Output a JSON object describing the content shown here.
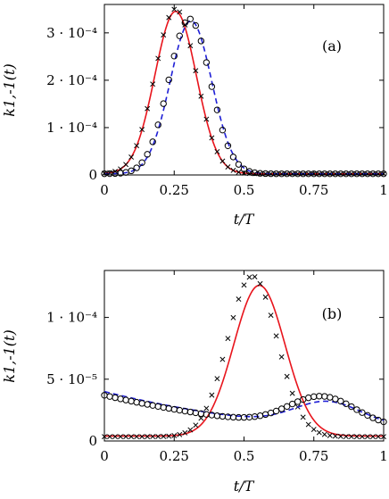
{
  "colors": {
    "red_line": "#e8141c",
    "blue_dashed": "#1f1fd6",
    "markers": "#000000"
  },
  "chart_data": [
    {
      "type": "line",
      "panel_label": "(a)",
      "xlabel": "t/T",
      "ylabel": "k1,-1(t)",
      "xlim": [
        0,
        1
      ],
      "ylim": [
        0,
        0.00036
      ],
      "xticks": [
        0,
        0.25,
        0.5,
        0.75,
        1
      ],
      "xtick_labels": [
        "0",
        "0.25",
        "0.5",
        "0.75",
        "1"
      ],
      "yticks": [
        0,
        0.0001,
        0.0002,
        0.0003
      ],
      "ytick_labels": [
        "0",
        "1 · 10⁻⁴",
        "2 · 10⁻⁴",
        "3 · 10⁻⁴"
      ],
      "series": [
        {
          "style": "solid-red",
          "model": {
            "base": 2.5e-06,
            "amp": 0.000343,
            "peak": 0.255,
            "width": 0.105
          }
        },
        {
          "style": "dashed-blue",
          "model": {
            "base": 2.5e-06,
            "amp": 0.000323,
            "peak": 0.31,
            "width": 0.105
          }
        },
        {
          "style": "x-markers",
          "model": {
            "base": 2.5e-06,
            "amp": 0.000348,
            "peak": 0.255,
            "width": 0.105
          }
        },
        {
          "style": "o-markers",
          "model": {
            "base": 2.5e-06,
            "amp": 0.000327,
            "peak": 0.305,
            "width": 0.105
          }
        }
      ]
    },
    {
      "type": "line",
      "panel_label": "(b)",
      "xlabel": "t/T",
      "ylabel": "k1,-1(t)",
      "xlim": [
        0,
        1
      ],
      "ylim": [
        0,
        0.000138
      ],
      "xticks": [
        0,
        0.25,
        0.5,
        0.75,
        1
      ],
      "xtick_labels": [
        "0",
        "0.25",
        "0.5",
        "0.75",
        "1"
      ],
      "yticks": [
        0,
        5e-05,
        0.0001
      ],
      "ytick_labels": [
        "0",
        "5 · 10⁻⁵",
        "1 · 10⁻⁴"
      ],
      "series": [
        {
          "style": "solid-red",
          "model": {
            "base": 4e-06,
            "amp": 0.000122,
            "peak": 0.555,
            "width": 0.13
          }
        },
        {
          "style": "x-markers",
          "model": {
            "base": 3.5e-06,
            "amp": 0.00013,
            "peak": 0.53,
            "width": 0.125
          }
        },
        {
          "style": "dashed-blue",
          "model": {
            "base": 1.2e-05,
            "amp": 1.9e-05,
            "peak": 0.8,
            "width": 0.17,
            "lin": 2.8e-05
          }
        },
        {
          "style": "o-markers",
          "model": {
            "base": 1.1e-05,
            "amp": 2.4e-05,
            "peak": 0.78,
            "width": 0.17,
            "lin": 2.6e-05
          }
        }
      ]
    }
  ]
}
